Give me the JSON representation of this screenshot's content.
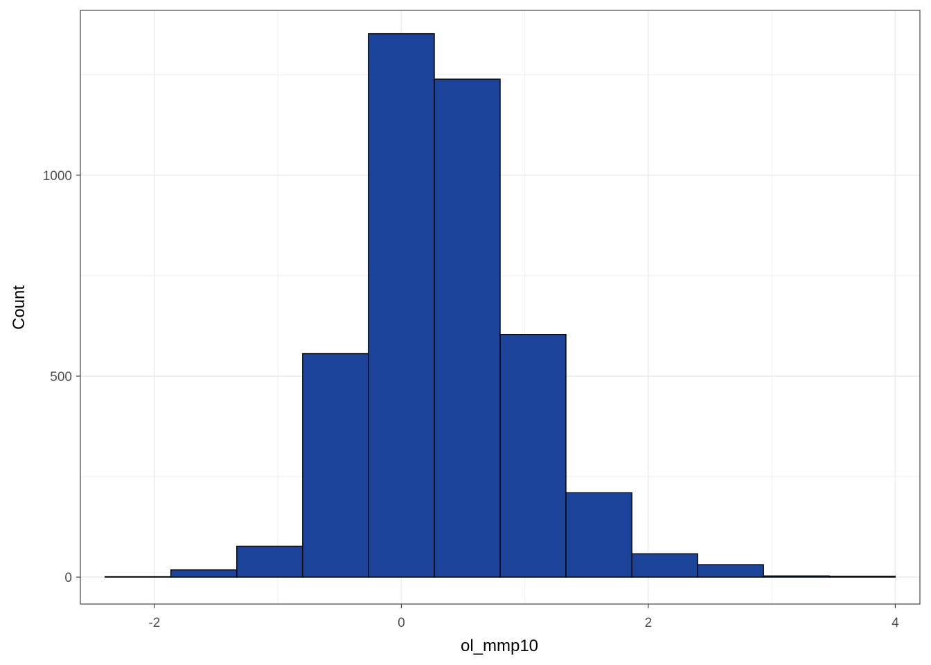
{
  "chart_data": {
    "type": "bar",
    "xlabel": "ol_mmp10",
    "ylabel": "Count",
    "xlim": [
      -2.6,
      4.2
    ],
    "ylim": [
      -67,
      1410
    ],
    "x_ticks": [
      -2,
      0,
      2,
      4
    ],
    "y_ticks": [
      0,
      500,
      1000
    ],
    "y_minor_ticks": [
      250,
      750,
      1250
    ],
    "x_minor_ticks": [
      -1,
      1,
      3
    ],
    "grid": true,
    "bar_fill": "#1a4399",
    "bar_stroke": "#000000",
    "bin_edges": [
      -2.4,
      -1.867,
      -1.333,
      -0.8,
      -0.267,
      0.267,
      0.8,
      1.333,
      1.867,
      2.4,
      2.933,
      3.467,
      4.0
    ],
    "values": [
      1,
      18,
      77,
      556,
      1352,
      1239,
      604,
      210,
      58,
      31,
      3,
      2
    ]
  }
}
